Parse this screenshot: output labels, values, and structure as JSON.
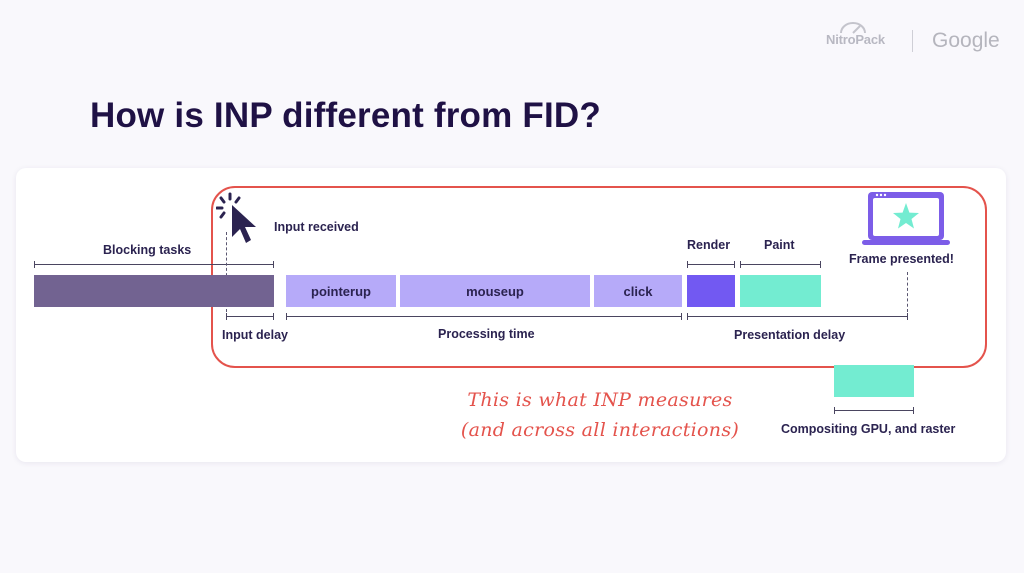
{
  "branding": {
    "nitropack_logo": "NitroPack",
    "google_logo": "Google"
  },
  "title": "How is INP different from FID?",
  "diagram": {
    "labels": {
      "blocking_tasks": "Blocking tasks",
      "input_received": "Input received",
      "render": "Render",
      "paint": "Paint",
      "frame_presented": "Frame presented!",
      "input_delay": "Input delay",
      "processing_time": "Processing time",
      "presentation_delay": "Presentation delay",
      "compositing": "Compositing GPU, and raster"
    },
    "events": {
      "pointerup": "pointerup",
      "mouseup": "mouseup",
      "click": "click"
    },
    "icons": {
      "cursor": "cursor-click-icon",
      "laptop": "laptop-star-icon"
    },
    "annotation": {
      "line1": "This is what INP measures",
      "line2": "(and across all interactions)"
    }
  },
  "colors": {
    "title": "#1f1145",
    "blocking": "#726391",
    "event": "#b6aaf9",
    "render": "#7259f2",
    "paint": "#73ecd1",
    "highlight": "#e4534c"
  }
}
